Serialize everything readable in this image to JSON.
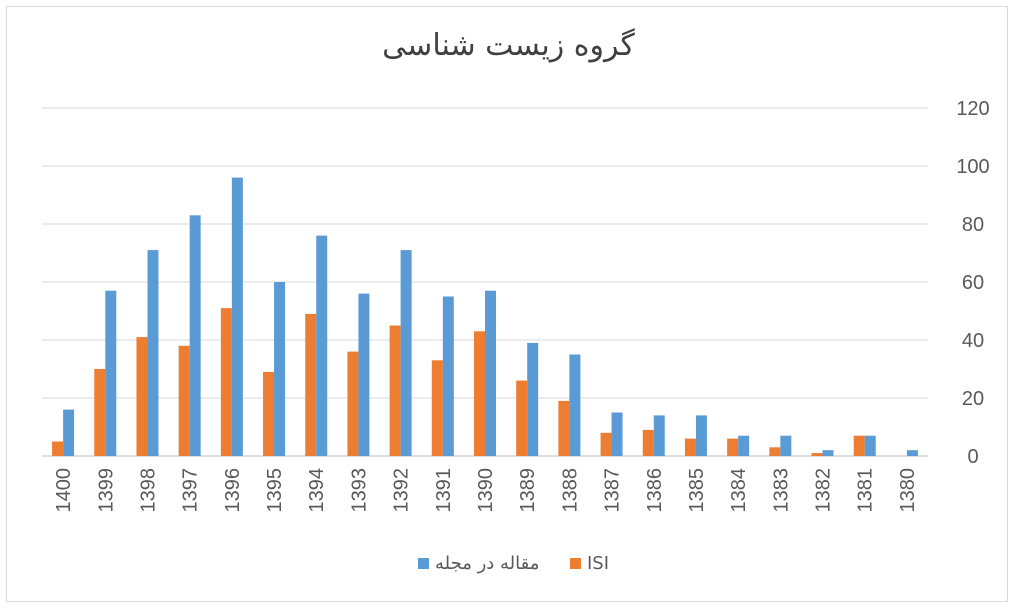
{
  "chart_data": {
    "type": "bar",
    "title": "گروه زیست شناسی",
    "categories": [
      "1400",
      "1399",
      "1398",
      "1397",
      "1396",
      "1395",
      "1394",
      "1393",
      "1392",
      "1391",
      "1390",
      "1389",
      "1388",
      "1387",
      "1386",
      "1385",
      "1384",
      "1383",
      "1382",
      "1381",
      "1380"
    ],
    "series": [
      {
        "name": "ISI",
        "color": "#ed7d31",
        "values": [
          5,
          30,
          41,
          38,
          51,
          29,
          49,
          36,
          45,
          33,
          43,
          26,
          19,
          8,
          9,
          6,
          6,
          3,
          1,
          7,
          0
        ]
      },
      {
        "name": "مقاله در مجله",
        "color": "#5b9bd5",
        "values": [
          16,
          57,
          71,
          83,
          96,
          60,
          76,
          56,
          71,
          55,
          57,
          39,
          35,
          15,
          14,
          14,
          7,
          7,
          2,
          7,
          2
        ]
      }
    ],
    "ylim": [
      0,
      120
    ],
    "yticks": [
      0,
      20,
      40,
      60,
      80,
      100,
      120
    ],
    "y_axis_side": "right",
    "grid": true,
    "legend": "bottom"
  }
}
